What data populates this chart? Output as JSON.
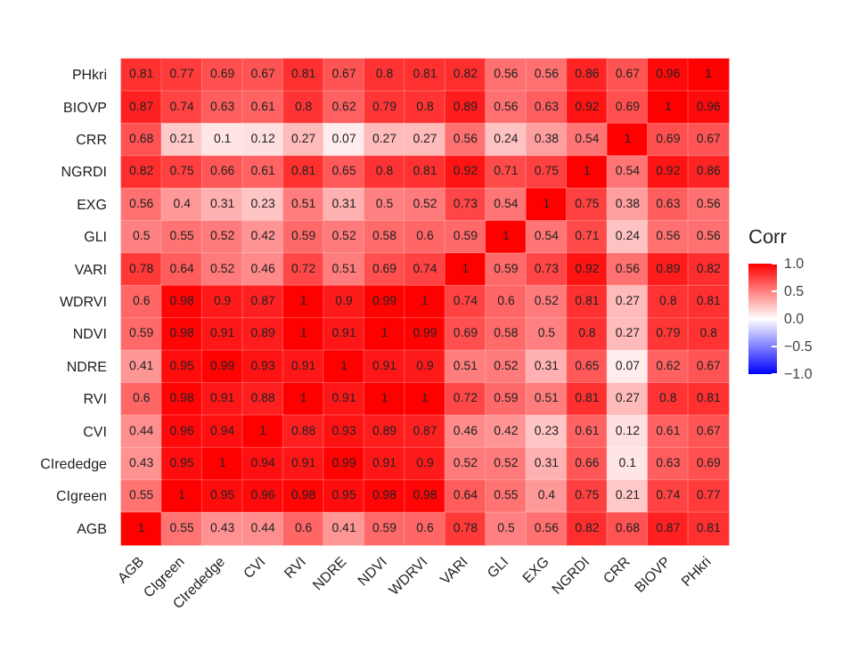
{
  "chart_data": {
    "type": "heatmap",
    "clabel": "Corr",
    "categories": [
      "AGB",
      "CIgreen",
      "CIrededge",
      "CVI",
      "RVI",
      "NDRE",
      "NDVI",
      "WDRVI",
      "VARI",
      "GLI",
      "EXG",
      "NGRDI",
      "CRR",
      "BIOVP",
      "PHkri"
    ],
    "y_categories": [
      "PHkri",
      "BIOVP",
      "CRR",
      "NGRDI",
      "EXG",
      "GLI",
      "VARI",
      "WDRVI",
      "NDVI",
      "NDRE",
      "RVI",
      "CVI",
      "CIrededge",
      "CIgreen",
      "AGB"
    ],
    "cells": [
      [
        0.81,
        0.77,
        0.69,
        0.67,
        0.81,
        0.67,
        0.8,
        0.81,
        0.82,
        0.56,
        0.56,
        0.86,
        0.67,
        0.96,
        1
      ],
      [
        0.87,
        0.74,
        0.63,
        0.61,
        0.8,
        0.62,
        0.79,
        0.8,
        0.89,
        0.56,
        0.63,
        0.92,
        0.69,
        1,
        0.96
      ],
      [
        0.68,
        0.21,
        0.1,
        0.12,
        0.27,
        0.07,
        0.27,
        0.27,
        0.56,
        0.24,
        0.38,
        0.54,
        1,
        0.69,
        0.67
      ],
      [
        0.82,
        0.75,
        0.66,
        0.61,
        0.81,
        0.65,
        0.8,
        0.81,
        0.92,
        0.71,
        0.75,
        1,
        0.54,
        0.92,
        0.86
      ],
      [
        0.56,
        0.4,
        0.31,
        0.23,
        0.51,
        0.31,
        0.5,
        0.52,
        0.73,
        0.54,
        1,
        0.75,
        0.38,
        0.63,
        0.56
      ],
      [
        0.5,
        0.55,
        0.52,
        0.42,
        0.59,
        0.52,
        0.58,
        0.6,
        0.59,
        1,
        0.54,
        0.71,
        0.24,
        0.56,
        0.56
      ],
      [
        0.78,
        0.64,
        0.52,
        0.46,
        0.72,
        0.51,
        0.69,
        0.74,
        1,
        0.59,
        0.73,
        0.92,
        0.56,
        0.89,
        0.82
      ],
      [
        0.6,
        0.98,
        0.9,
        0.87,
        1,
        0.9,
        0.99,
        1,
        0.74,
        0.6,
        0.52,
        0.81,
        0.27,
        0.8,
        0.81
      ],
      [
        0.59,
        0.98,
        0.91,
        0.89,
        1,
        0.91,
        1,
        0.99,
        0.69,
        0.58,
        0.5,
        0.8,
        0.27,
        0.79,
        0.8
      ],
      [
        0.41,
        0.95,
        0.99,
        0.93,
        0.91,
        1,
        0.91,
        0.9,
        0.51,
        0.52,
        0.31,
        0.65,
        0.07,
        0.62,
        0.67
      ],
      [
        0.6,
        0.98,
        0.91,
        0.88,
        1,
        0.91,
        1,
        1,
        0.72,
        0.59,
        0.51,
        0.81,
        0.27,
        0.8,
        0.81
      ],
      [
        0.44,
        0.96,
        0.94,
        1,
        0.88,
        0.93,
        0.89,
        0.87,
        0.46,
        0.42,
        0.23,
        0.61,
        0.12,
        0.61,
        0.67
      ],
      [
        0.43,
        0.95,
        1,
        0.94,
        0.91,
        0.99,
        0.91,
        0.9,
        0.52,
        0.52,
        0.31,
        0.66,
        0.1,
        0.63,
        0.69
      ],
      [
        0.55,
        1,
        0.95,
        0.96,
        0.98,
        0.95,
        0.98,
        0.98,
        0.64,
        0.55,
        0.4,
        0.75,
        0.21,
        0.74,
        0.77
      ],
      [
        1,
        0.55,
        0.43,
        0.44,
        0.6,
        0.41,
        0.59,
        0.6,
        0.78,
        0.5,
        0.56,
        0.82,
        0.68,
        0.87,
        0.81
      ]
    ],
    "clim": [
      -1,
      1
    ],
    "cticks": [
      {
        "value": 1,
        "label": "1.0"
      },
      {
        "value": 0.5,
        "label": "0.5"
      },
      {
        "value": 0,
        "label": "0.0"
      },
      {
        "value": -0.5,
        "label": "−0.5"
      },
      {
        "value": -1,
        "label": "−1.0"
      }
    ],
    "data_labels": true
  }
}
